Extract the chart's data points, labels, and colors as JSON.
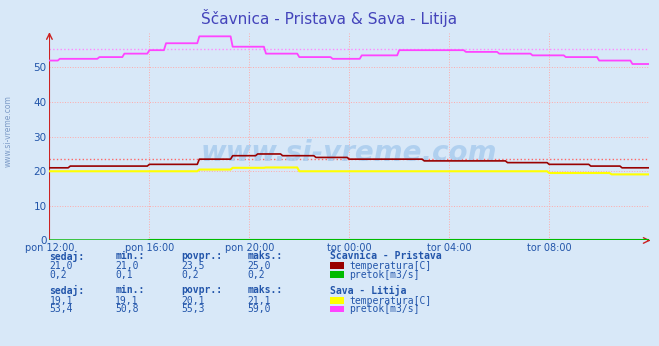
{
  "title": "Ščavnica - Pristava & Sava - Litija",
  "title_color": "#4444bb",
  "bg_color": "#d8e8f8",
  "plot_bg_color": "#d8e8f8",
  "x_labels": [
    "pon 12:00",
    "pon 16:00",
    "pon 20:00",
    "tor 00:00",
    "tor 04:00",
    "tor 08:00"
  ],
  "x_ticks": [
    0,
    48,
    96,
    144,
    192,
    240
  ],
  "x_max": 288,
  "y_min": 0,
  "y_max": 60,
  "y_ticks_show": [
    0,
    10,
    20,
    30,
    40,
    50
  ],
  "grid_color": "#ffaaaa",
  "grid_style": ":",
  "watermark": "www.si-vreme.com",
  "watermark_color": "#aaccee",
  "scavnica_temp_color": "#990000",
  "scavnica_pretok_color": "#00bb00",
  "sava_temp_color": "#ffff00",
  "sava_pretok_color": "#ff44ff",
  "scavnica_temp_avg": 23.5,
  "sava_pretok_avg": 55.3,
  "avg_line_color": "#ff6666",
  "avg_line_color_mag": "#ff88ff",
  "header_color": "#2255aa",
  "val_color": "#2255aa",
  "scavnica_label": "Ščavnica - Pristava",
  "sava_label": "Sava - Litija",
  "sc_sedaj": "21,0",
  "sc_min": "21,0",
  "sc_povpr": "23,5",
  "sc_maks": "25,0",
  "sc_p_sedaj": "0,2",
  "sc_p_min": "0,1",
  "sc_p_povpr": "0,2",
  "sc_p_maks": "0,2",
  "sa_sedaj": "19,1",
  "sa_min": "19,1",
  "sa_povpr": "20,1",
  "sa_maks": "21,1",
  "sa_p_sedaj": "53,4",
  "sa_p_min": "50,8",
  "sa_p_povpr": "55,3",
  "sa_p_maks": "59,0",
  "sidebar_text": "www.si-vreme.com",
  "sidebar_color": "#6688bb"
}
